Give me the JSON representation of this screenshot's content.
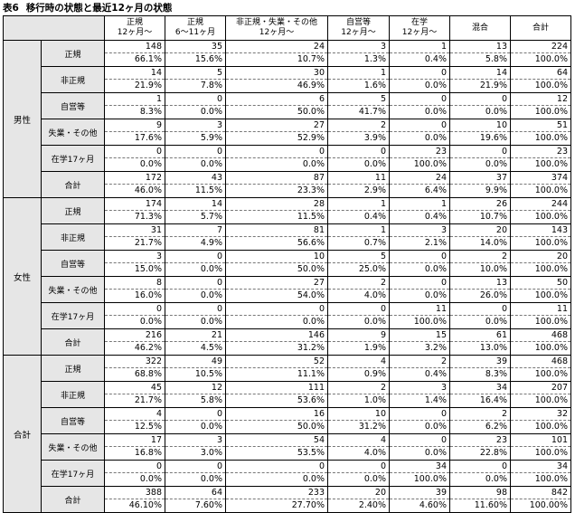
{
  "title": {
    "label": "表6",
    "text": "移行時の状態と最近12ヶ月の状態"
  },
  "header": {
    "columns": [
      [
        "正規",
        "12ヶ月〜"
      ],
      [
        "正規",
        "6〜11ヶ月"
      ],
      [
        "非正規・失業・その他",
        "12ヶ月〜"
      ],
      [
        "自営等",
        "12ヶ月〜"
      ],
      [
        "在学",
        "12ヶ月〜"
      ],
      [
        "混合"
      ],
      [
        "合計"
      ]
    ]
  },
  "groups": [
    {
      "name": "男性",
      "rows": [
        {
          "label": "正規",
          "counts": [
            "148",
            "35",
            "24",
            "3",
            "1",
            "13",
            "224"
          ],
          "pcts": [
            "66.1%",
            "15.6%",
            "10.7%",
            "1.3%",
            "0.4%",
            "5.8%",
            "100.0%"
          ]
        },
        {
          "label": "非正規",
          "counts": [
            "14",
            "5",
            "30",
            "1",
            "0",
            "14",
            "64"
          ],
          "pcts": [
            "21.9%",
            "7.8%",
            "46.9%",
            "1.6%",
            "0.0%",
            "21.9%",
            "100.0%"
          ]
        },
        {
          "label": "自営等",
          "counts": [
            "1",
            "0",
            "6",
            "5",
            "0",
            "0",
            "12"
          ],
          "pcts": [
            "8.3%",
            "0.0%",
            "50.0%",
            "41.7%",
            "0.0%",
            "0.0%",
            "100.0%"
          ]
        },
        {
          "label": "失業・その他",
          "counts": [
            "9",
            "3",
            "27",
            "2",
            "0",
            "10",
            "51"
          ],
          "pcts": [
            "17.6%",
            "5.9%",
            "52.9%",
            "3.9%",
            "0.0%",
            "19.6%",
            "100.0%"
          ]
        },
        {
          "label": "在学17ヶ月",
          "counts": [
            "0",
            "0",
            "0",
            "0",
            "23",
            "0",
            "23"
          ],
          "pcts": [
            "0.0%",
            "0.0%",
            "0.0%",
            "0.0%",
            "100.0%",
            "0.0%",
            "100.0%"
          ]
        },
        {
          "label": "合計",
          "counts": [
            "172",
            "43",
            "87",
            "11",
            "24",
            "37",
            "374"
          ],
          "pcts": [
            "46.0%",
            "11.5%",
            "23.3%",
            "2.9%",
            "6.4%",
            "9.9%",
            "100.0%"
          ]
        }
      ]
    },
    {
      "name": "女性",
      "rows": [
        {
          "label": "正規",
          "counts": [
            "174",
            "14",
            "28",
            "1",
            "1",
            "26",
            "244"
          ],
          "pcts": [
            "71.3%",
            "5.7%",
            "11.5%",
            "0.4%",
            "0.4%",
            "10.7%",
            "100.0%"
          ]
        },
        {
          "label": "非正規",
          "counts": [
            "31",
            "7",
            "81",
            "1",
            "3",
            "20",
            "143"
          ],
          "pcts": [
            "21.7%",
            "4.9%",
            "56.6%",
            "0.7%",
            "2.1%",
            "14.0%",
            "100.0%"
          ]
        },
        {
          "label": "自営等",
          "counts": [
            "3",
            "0",
            "10",
            "5",
            "0",
            "2",
            "20"
          ],
          "pcts": [
            "15.0%",
            "0.0%",
            "50.0%",
            "25.0%",
            "0.0%",
            "10.0%",
            "100.0%"
          ]
        },
        {
          "label": "失業・その他",
          "counts": [
            "8",
            "0",
            "27",
            "2",
            "0",
            "13",
            "50"
          ],
          "pcts": [
            "16.0%",
            "0.0%",
            "54.0%",
            "4.0%",
            "0.0%",
            "26.0%",
            "100.0%"
          ]
        },
        {
          "label": "在学17ヶ月",
          "counts": [
            "0",
            "0",
            "0",
            "0",
            "11",
            "0",
            "11"
          ],
          "pcts": [
            "0.0%",
            "0.0%",
            "0.0%",
            "0.0%",
            "100.0%",
            "0.0%",
            "100.0%"
          ]
        },
        {
          "label": "合計",
          "counts": [
            "216",
            "21",
            "146",
            "9",
            "15",
            "61",
            "468"
          ],
          "pcts": [
            "46.2%",
            "4.5%",
            "31.2%",
            "1.9%",
            "3.2%",
            "13.0%",
            "100.0%"
          ]
        }
      ]
    },
    {
      "name": "合計",
      "rows": [
        {
          "label": "正規",
          "counts": [
            "322",
            "49",
            "52",
            "4",
            "2",
            "39",
            "468"
          ],
          "pcts": [
            "68.8%",
            "10.5%",
            "11.1%",
            "0.9%",
            "0.4%",
            "8.3%",
            "100.0%"
          ]
        },
        {
          "label": "非正規",
          "counts": [
            "45",
            "12",
            "111",
            "2",
            "3",
            "34",
            "207"
          ],
          "pcts": [
            "21.7%",
            "5.8%",
            "53.6%",
            "1.0%",
            "1.4%",
            "16.4%",
            "100.0%"
          ]
        },
        {
          "label": "自営等",
          "counts": [
            "4",
            "0",
            "16",
            "10",
            "0",
            "2",
            "32"
          ],
          "pcts": [
            "12.5%",
            "0.0%",
            "50.0%",
            "31.2%",
            "0.0%",
            "6.2%",
            "100.0%"
          ]
        },
        {
          "label": "失業・その他",
          "counts": [
            "17",
            "3",
            "54",
            "4",
            "0",
            "23",
            "101"
          ],
          "pcts": [
            "16.8%",
            "3.0%",
            "53.5%",
            "4.0%",
            "0.0%",
            "22.8%",
            "100.0%"
          ]
        },
        {
          "label": "在学17ヶ月",
          "counts": [
            "0",
            "0",
            "0",
            "0",
            "34",
            "0",
            "34"
          ],
          "pcts": [
            "0.0%",
            "0.0%",
            "0.0%",
            "0.0%",
            "100.0%",
            "0.0%",
            "100.0%"
          ]
        },
        {
          "label": "合計",
          "counts": [
            "388",
            "64",
            "233",
            "20",
            "39",
            "98",
            "842"
          ],
          "pcts": [
            "46.10%",
            "7.60%",
            "27.70%",
            "2.40%",
            "4.60%",
            "11.60%",
            "100.00%"
          ]
        }
      ]
    }
  ]
}
